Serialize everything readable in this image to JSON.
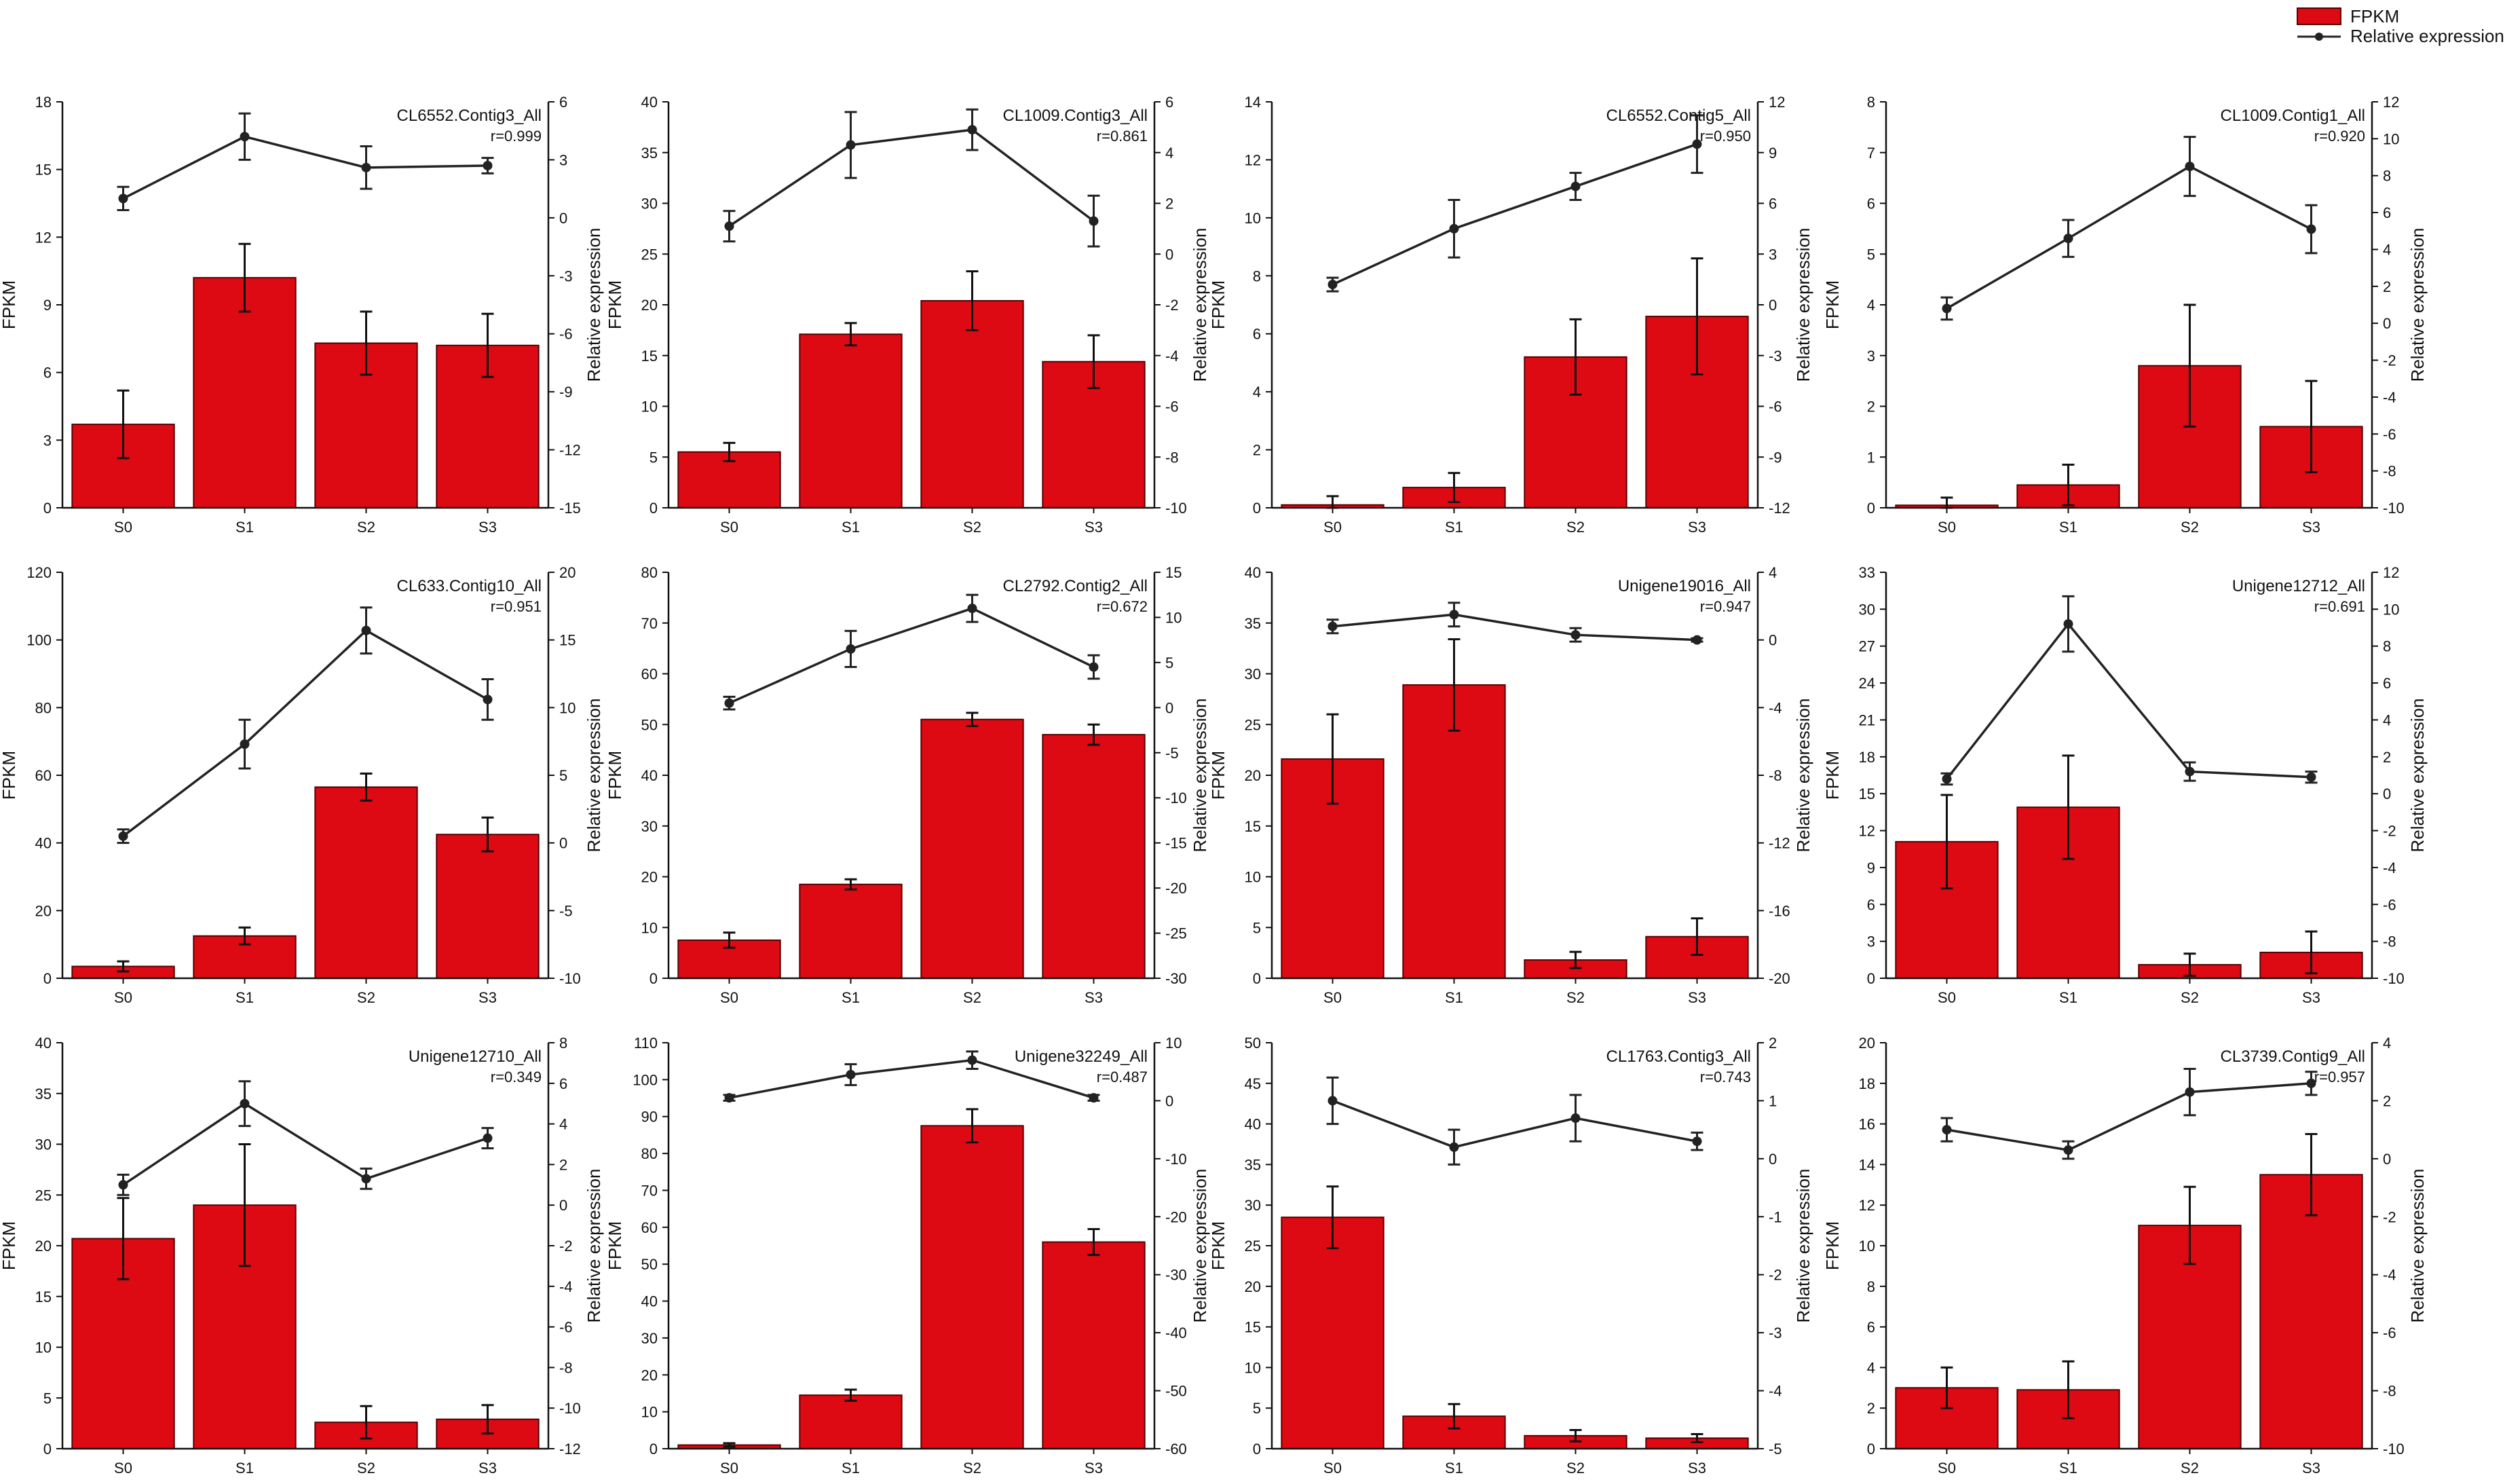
{
  "legend": {
    "bar_label": "FPKM",
    "line_label": "Relative expression"
  },
  "colors": {
    "bar": "#dd0a14",
    "bar_stroke": "#5a0000",
    "line": "#222222",
    "axis": "#111111"
  },
  "chart_data": [
    {
      "type": "bar",
      "title": "CL6552.Contig3_All",
      "r_label": "r=0.999",
      "categories": [
        "S0",
        "S1",
        "S2",
        "S3"
      ],
      "xlabel": "",
      "ylabel": "FPKM",
      "y2label": "Relative expression",
      "ylim": [
        0,
        18
      ],
      "yticks": [
        0,
        3,
        6,
        9,
        12,
        15,
        18
      ],
      "y2lim": [
        -15,
        6
      ],
      "y2ticks": [
        -15,
        -12,
        -9,
        -6,
        -3,
        0,
        3,
        6
      ],
      "series": [
        {
          "name": "FPKM",
          "axis": "left",
          "values": [
            3.7,
            10.2,
            7.3,
            7.2
          ],
          "errors": [
            1.5,
            1.5,
            1.4,
            1.4
          ]
        },
        {
          "name": "Relative expression",
          "axis": "right",
          "values": [
            1.0,
            4.2,
            2.6,
            2.7
          ],
          "errors": [
            0.6,
            1.2,
            1.1,
            0.4
          ]
        }
      ]
    },
    {
      "type": "bar",
      "title": "CL1009.Contig3_All",
      "r_label": "r=0.861",
      "categories": [
        "S0",
        "S1",
        "S2",
        "S3"
      ],
      "xlabel": "",
      "ylabel": "FPKM",
      "y2label": "Relative expression",
      "ylim": [
        0,
        40
      ],
      "yticks": [
        0,
        5,
        10,
        15,
        20,
        25,
        30,
        35,
        40
      ],
      "y2lim": [
        -10,
        6
      ],
      "y2ticks": [
        -10,
        -8,
        -6,
        -4,
        -2,
        0,
        2,
        4,
        6
      ],
      "series": [
        {
          "name": "FPKM",
          "axis": "left",
          "values": [
            5.5,
            17.1,
            20.4,
            14.4
          ],
          "errors": [
            0.9,
            1.1,
            2.9,
            2.6
          ]
        },
        {
          "name": "Relative expression",
          "axis": "right",
          "values": [
            1.1,
            4.3,
            4.9,
            1.3
          ],
          "errors": [
            0.6,
            1.3,
            0.8,
            1.0
          ]
        }
      ]
    },
    {
      "type": "bar",
      "title": "CL6552.Contig5_All",
      "r_label": "r=0.950",
      "categories": [
        "S0",
        "S1",
        "S2",
        "S3"
      ],
      "xlabel": "",
      "ylabel": "FPKM",
      "y2label": "Relative expression",
      "ylim": [
        0,
        14
      ],
      "yticks": [
        0,
        2,
        4,
        6,
        8,
        10,
        12,
        14
      ],
      "y2lim": [
        -12,
        12
      ],
      "y2ticks": [
        -12,
        -9,
        -6,
        -3,
        0,
        3,
        6,
        9,
        12
      ],
      "series": [
        {
          "name": "FPKM",
          "axis": "left",
          "values": [
            0.1,
            0.7,
            5.2,
            6.6
          ],
          "errors": [
            0.3,
            0.5,
            1.3,
            2.0
          ]
        },
        {
          "name": "Relative expression",
          "axis": "right",
          "values": [
            1.2,
            4.5,
            7.0,
            9.5
          ],
          "errors": [
            0.4,
            1.7,
            0.8,
            1.7
          ]
        }
      ]
    },
    {
      "type": "bar",
      "title": "CL1009.Contig1_All",
      "r_label": "r=0.920",
      "categories": [
        "S0",
        "S1",
        "S2",
        "S3"
      ],
      "xlabel": "",
      "ylabel": "FPKM",
      "y2label": "Relative expression",
      "ylim": [
        0,
        8
      ],
      "yticks": [
        0,
        1,
        2,
        3,
        4,
        5,
        6,
        7,
        8
      ],
      "y2lim": [
        -10,
        12
      ],
      "y2ticks": [
        -10,
        -8,
        -6,
        -4,
        -2,
        0,
        2,
        4,
        6,
        8,
        10,
        12
      ],
      "series": [
        {
          "name": "FPKM",
          "axis": "left",
          "values": [
            0.05,
            0.45,
            2.8,
            1.6
          ],
          "errors": [
            0.15,
            0.4,
            1.2,
            0.9
          ]
        },
        {
          "name": "Relative expression",
          "axis": "right",
          "values": [
            0.8,
            4.6,
            8.5,
            5.1
          ],
          "errors": [
            0.6,
            1.0,
            1.6,
            1.3
          ]
        }
      ]
    },
    {
      "type": "bar",
      "title": "CL633.Contig10_All",
      "r_label": "r=0.951",
      "categories": [
        "S0",
        "S1",
        "S2",
        "S3"
      ],
      "xlabel": "",
      "ylabel": "FPKM",
      "y2label": "Relative expression",
      "ylim": [
        0,
        120
      ],
      "yticks": [
        0,
        20,
        40,
        60,
        80,
        100,
        120
      ],
      "y2lim": [
        -10,
        20
      ],
      "y2ticks": [
        -10,
        -5,
        0,
        5,
        10,
        15,
        20
      ],
      "series": [
        {
          "name": "FPKM",
          "axis": "left",
          "values": [
            3.5,
            12.5,
            56.5,
            42.5
          ],
          "errors": [
            1.5,
            2.5,
            4.0,
            5.0
          ]
        },
        {
          "name": "Relative expression",
          "axis": "right",
          "values": [
            0.5,
            7.3,
            15.7,
            10.6
          ],
          "errors": [
            0.5,
            1.8,
            1.7,
            1.5
          ]
        }
      ]
    },
    {
      "type": "bar",
      "title": "CL2792.Contig2_All",
      "r_label": "r=0.672",
      "categories": [
        "S0",
        "S1",
        "S2",
        "S3"
      ],
      "xlabel": "",
      "ylabel": "FPKM",
      "y2label": "Relative expression",
      "ylim": [
        0,
        80
      ],
      "yticks": [
        0,
        10,
        20,
        30,
        40,
        50,
        60,
        70,
        80
      ],
      "y2lim": [
        -30,
        15
      ],
      "y2ticks": [
        -30,
        -25,
        -20,
        -15,
        -10,
        -5,
        0,
        5,
        10,
        15
      ],
      "series": [
        {
          "name": "FPKM",
          "axis": "left",
          "values": [
            7.5,
            18.5,
            51.0,
            48.0
          ],
          "errors": [
            1.5,
            1.0,
            1.3,
            2.0
          ]
        },
        {
          "name": "Relative expression",
          "axis": "right",
          "values": [
            0.5,
            6.5,
            11.0,
            4.5
          ],
          "errors": [
            0.7,
            2.0,
            1.5,
            1.3
          ]
        }
      ]
    },
    {
      "type": "bar",
      "title": "Unigene19016_All",
      "r_label": "r=0.947",
      "categories": [
        "S0",
        "S1",
        "S2",
        "S3"
      ],
      "xlabel": "",
      "ylabel": "FPKM",
      "y2label": "Relative expression",
      "ylim": [
        0,
        40
      ],
      "yticks": [
        0,
        5,
        10,
        15,
        20,
        25,
        30,
        35,
        40
      ],
      "y2lim": [
        -20,
        4
      ],
      "y2ticks": [
        -20,
        -16,
        -12,
        -8,
        -4,
        0,
        4
      ],
      "series": [
        {
          "name": "FPKM",
          "axis": "left",
          "values": [
            21.6,
            28.9,
            1.8,
            4.1
          ],
          "errors": [
            4.4,
            4.5,
            0.8,
            1.8
          ]
        },
        {
          "name": "Relative expression",
          "axis": "right",
          "values": [
            0.8,
            1.5,
            0.3,
            0.0
          ],
          "errors": [
            0.4,
            0.7,
            0.4,
            0.1
          ]
        }
      ]
    },
    {
      "type": "bar",
      "title": "Unigene12712_All",
      "r_label": "r=0.691",
      "categories": [
        "S0",
        "S1",
        "S2",
        "S3"
      ],
      "xlabel": "",
      "ylabel": "FPKM",
      "y2label": "Relative expression",
      "ylim": [
        0,
        33
      ],
      "yticks": [
        0,
        3,
        6,
        9,
        12,
        15,
        18,
        21,
        24,
        27,
        30,
        33
      ],
      "y2lim": [
        -10,
        12
      ],
      "y2ticks": [
        -10,
        -8,
        -6,
        -4,
        -2,
        0,
        2,
        4,
        6,
        8,
        10,
        12
      ],
      "series": [
        {
          "name": "FPKM",
          "axis": "left",
          "values": [
            11.1,
            13.9,
            1.1,
            2.1
          ],
          "errors": [
            3.8,
            4.2,
            0.9,
            1.7
          ]
        },
        {
          "name": "Relative expression",
          "axis": "right",
          "values": [
            0.8,
            9.2,
            1.2,
            0.9
          ],
          "errors": [
            0.3,
            1.5,
            0.5,
            0.3
          ]
        }
      ]
    },
    {
      "type": "bar",
      "title": "Unigene12710_All",
      "r_label": "r=0.349",
      "categories": [
        "S0",
        "S1",
        "S2",
        "S3"
      ],
      "xlabel": "",
      "ylabel": "FPKM",
      "y2label": "Relative expression",
      "ylim": [
        0,
        40
      ],
      "yticks": [
        0,
        5,
        10,
        15,
        20,
        25,
        30,
        35,
        40
      ],
      "y2lim": [
        -12,
        8
      ],
      "y2ticks": [
        -12,
        -10,
        -8,
        -6,
        -4,
        -2,
        0,
        2,
        4,
        6,
        8
      ],
      "series": [
        {
          "name": "FPKM",
          "axis": "left",
          "values": [
            20.7,
            24.0,
            2.6,
            2.9
          ],
          "errors": [
            4.0,
            6.0,
            1.6,
            1.4
          ]
        },
        {
          "name": "Relative expression",
          "axis": "right",
          "values": [
            1.0,
            5.0,
            1.3,
            3.3
          ],
          "errors": [
            0.5,
            1.1,
            0.5,
            0.5
          ]
        }
      ]
    },
    {
      "type": "bar",
      "title": "Unigene32249_All",
      "r_label": "r=0.487",
      "categories": [
        "S0",
        "S1",
        "S2",
        "S3"
      ],
      "xlabel": "",
      "ylabel": "FPKM",
      "y2label": "Relative expression",
      "ylim": [
        0,
        110
      ],
      "yticks": [
        0,
        10,
        20,
        30,
        40,
        50,
        60,
        70,
        80,
        90,
        100,
        110
      ],
      "y2lim": [
        -60,
        10
      ],
      "y2ticks": [
        -60,
        -50,
        -40,
        -30,
        -20,
        -10,
        0,
        10
      ],
      "series": [
        {
          "name": "FPKM",
          "axis": "left",
          "values": [
            1.0,
            14.5,
            87.5,
            56.0
          ],
          "errors": [
            0.5,
            1.5,
            4.5,
            3.5
          ]
        },
        {
          "name": "Relative expression",
          "axis": "right",
          "values": [
            0.5,
            4.5,
            7.0,
            0.5
          ],
          "errors": [
            0.5,
            1.8,
            1.5,
            0.5
          ]
        }
      ]
    },
    {
      "type": "bar",
      "title": "CL1763.Contig3_All",
      "r_label": "r=0.743",
      "categories": [
        "S0",
        "S1",
        "S2",
        "S3"
      ],
      "xlabel": "",
      "ylabel": "FPKM",
      "y2label": "Relative expression",
      "ylim": [
        0,
        50
      ],
      "yticks": [
        0,
        5,
        10,
        15,
        20,
        25,
        30,
        35,
        40,
        45,
        50
      ],
      "y2lim": [
        -5,
        2
      ],
      "y2ticks": [
        -5,
        -4,
        -3,
        -2,
        -1,
        0,
        1,
        2
      ],
      "series": [
        {
          "name": "FPKM",
          "axis": "left",
          "values": [
            28.5,
            4.0,
            1.6,
            1.3
          ],
          "errors": [
            3.8,
            1.5,
            0.7,
            0.5
          ]
        },
        {
          "name": "Relative expression",
          "axis": "right",
          "values": [
            1.0,
            0.2,
            0.7,
            0.3
          ],
          "errors": [
            0.4,
            0.3,
            0.4,
            0.15
          ]
        }
      ]
    },
    {
      "type": "bar",
      "title": "CL3739.Contig9_All",
      "r_label": "r=0.957",
      "categories": [
        "S0",
        "S1",
        "S2",
        "S3"
      ],
      "xlabel": "",
      "ylabel": "FPKM",
      "y2label": "Relative expression",
      "ylim": [
        0,
        20
      ],
      "yticks": [
        0,
        2,
        4,
        6,
        8,
        10,
        12,
        14,
        16,
        18,
        20
      ],
      "y2lim": [
        -10,
        4
      ],
      "y2ticks": [
        -10,
        -8,
        -6,
        -4,
        -2,
        0,
        2,
        4
      ],
      "series": [
        {
          "name": "FPKM",
          "axis": "left",
          "values": [
            3.0,
            2.9,
            11.0,
            13.5
          ],
          "errors": [
            1.0,
            1.4,
            1.9,
            2.0
          ]
        },
        {
          "name": "Relative expression",
          "axis": "right",
          "values": [
            1.0,
            0.3,
            2.3,
            2.6
          ],
          "errors": [
            0.4,
            0.3,
            0.8,
            0.4
          ]
        }
      ]
    }
  ]
}
